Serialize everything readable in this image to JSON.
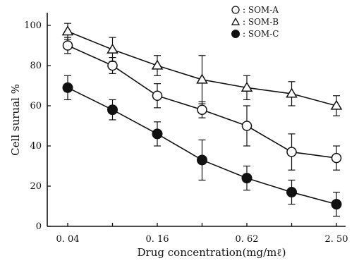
{
  "chart_data": {
    "type": "line",
    "xlabel": "Drug concentration(mg/mℓ)",
    "ylabel": "Cell surual %",
    "x_tick_labels": [
      "0. 04",
      "0. 16",
      "0. 62",
      "2. 50"
    ],
    "x": [
      0.04,
      0.08,
      0.16,
      0.31,
      0.62,
      1.25,
      2.5
    ],
    "ylim": [
      0,
      100
    ],
    "y_ticks": [
      0,
      20,
      40,
      60,
      80,
      100
    ],
    "grid": false,
    "legend_position": "top-right",
    "series": [
      {
        "name": "SOM-A",
        "legend_label": "○ : SOM-A",
        "marker": "open-circle",
        "values": [
          90,
          80,
          65,
          58,
          50,
          37,
          34
        ],
        "errors": [
          4,
          4,
          6,
          4,
          10,
          9,
          6
        ]
      },
      {
        "name": "SOM-B",
        "legend_label": "△ : SOM-B",
        "marker": "open-triangle",
        "values": [
          97,
          88,
          80,
          73,
          69,
          66,
          60
        ],
        "errors": [
          4,
          6,
          5,
          12,
          6,
          6,
          5
        ]
      },
      {
        "name": "SOM-C",
        "legend_label": "● : SOM-C",
        "marker": "filled-circle",
        "values": [
          69,
          58,
          46,
          33,
          24,
          17,
          11
        ],
        "errors": [
          6,
          5,
          6,
          10,
          6,
          6,
          6
        ]
      }
    ]
  }
}
